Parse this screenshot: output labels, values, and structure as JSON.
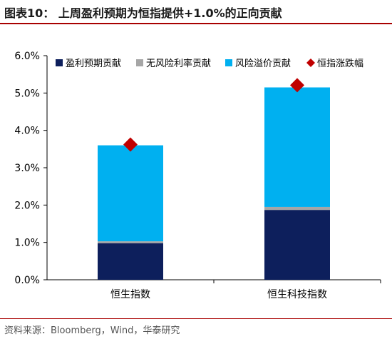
{
  "title": "图表10：  上周盈利预期为恒指提供+1.0%的正向贡献",
  "source": "资料来源：Bloomberg，Wind，华泰研究",
  "colors": {
    "earnings": "#0d1f5c",
    "riskfree": "#a6a6a6",
    "riskpremium": "#00b0f0",
    "index_change": "#c00000",
    "title_rule": "#a80000"
  },
  "chart_data": {
    "type": "bar",
    "stacked": true,
    "categories": [
      "恒生指数",
      "恒生科技指数"
    ],
    "series": [
      {
        "name": "盈利预期贡献",
        "values": [
          0.98,
          1.87
        ],
        "color": "#0d1f5c"
      },
      {
        "name": "无风险利率贡献",
        "values": [
          0.05,
          0.08
        ],
        "color": "#a6a6a6"
      },
      {
        "name": "风险溢价贡献",
        "values": [
          2.57,
          3.2
        ],
        "color": "#00b0f0"
      }
    ],
    "markers": {
      "name": "恒指涨跌幅",
      "values": [
        3.62,
        5.21
      ],
      "color": "#c00000",
      "shape": "diamond"
    },
    "ylim": [
      0,
      6
    ],
    "yticks": [
      "0.0%",
      "1.0%",
      "2.0%",
      "3.0%",
      "4.0%",
      "5.0%",
      "6.0%"
    ],
    "ytick_values": [
      0,
      1,
      2,
      3,
      4,
      5,
      6
    ],
    "grid": false,
    "legend": "top"
  }
}
